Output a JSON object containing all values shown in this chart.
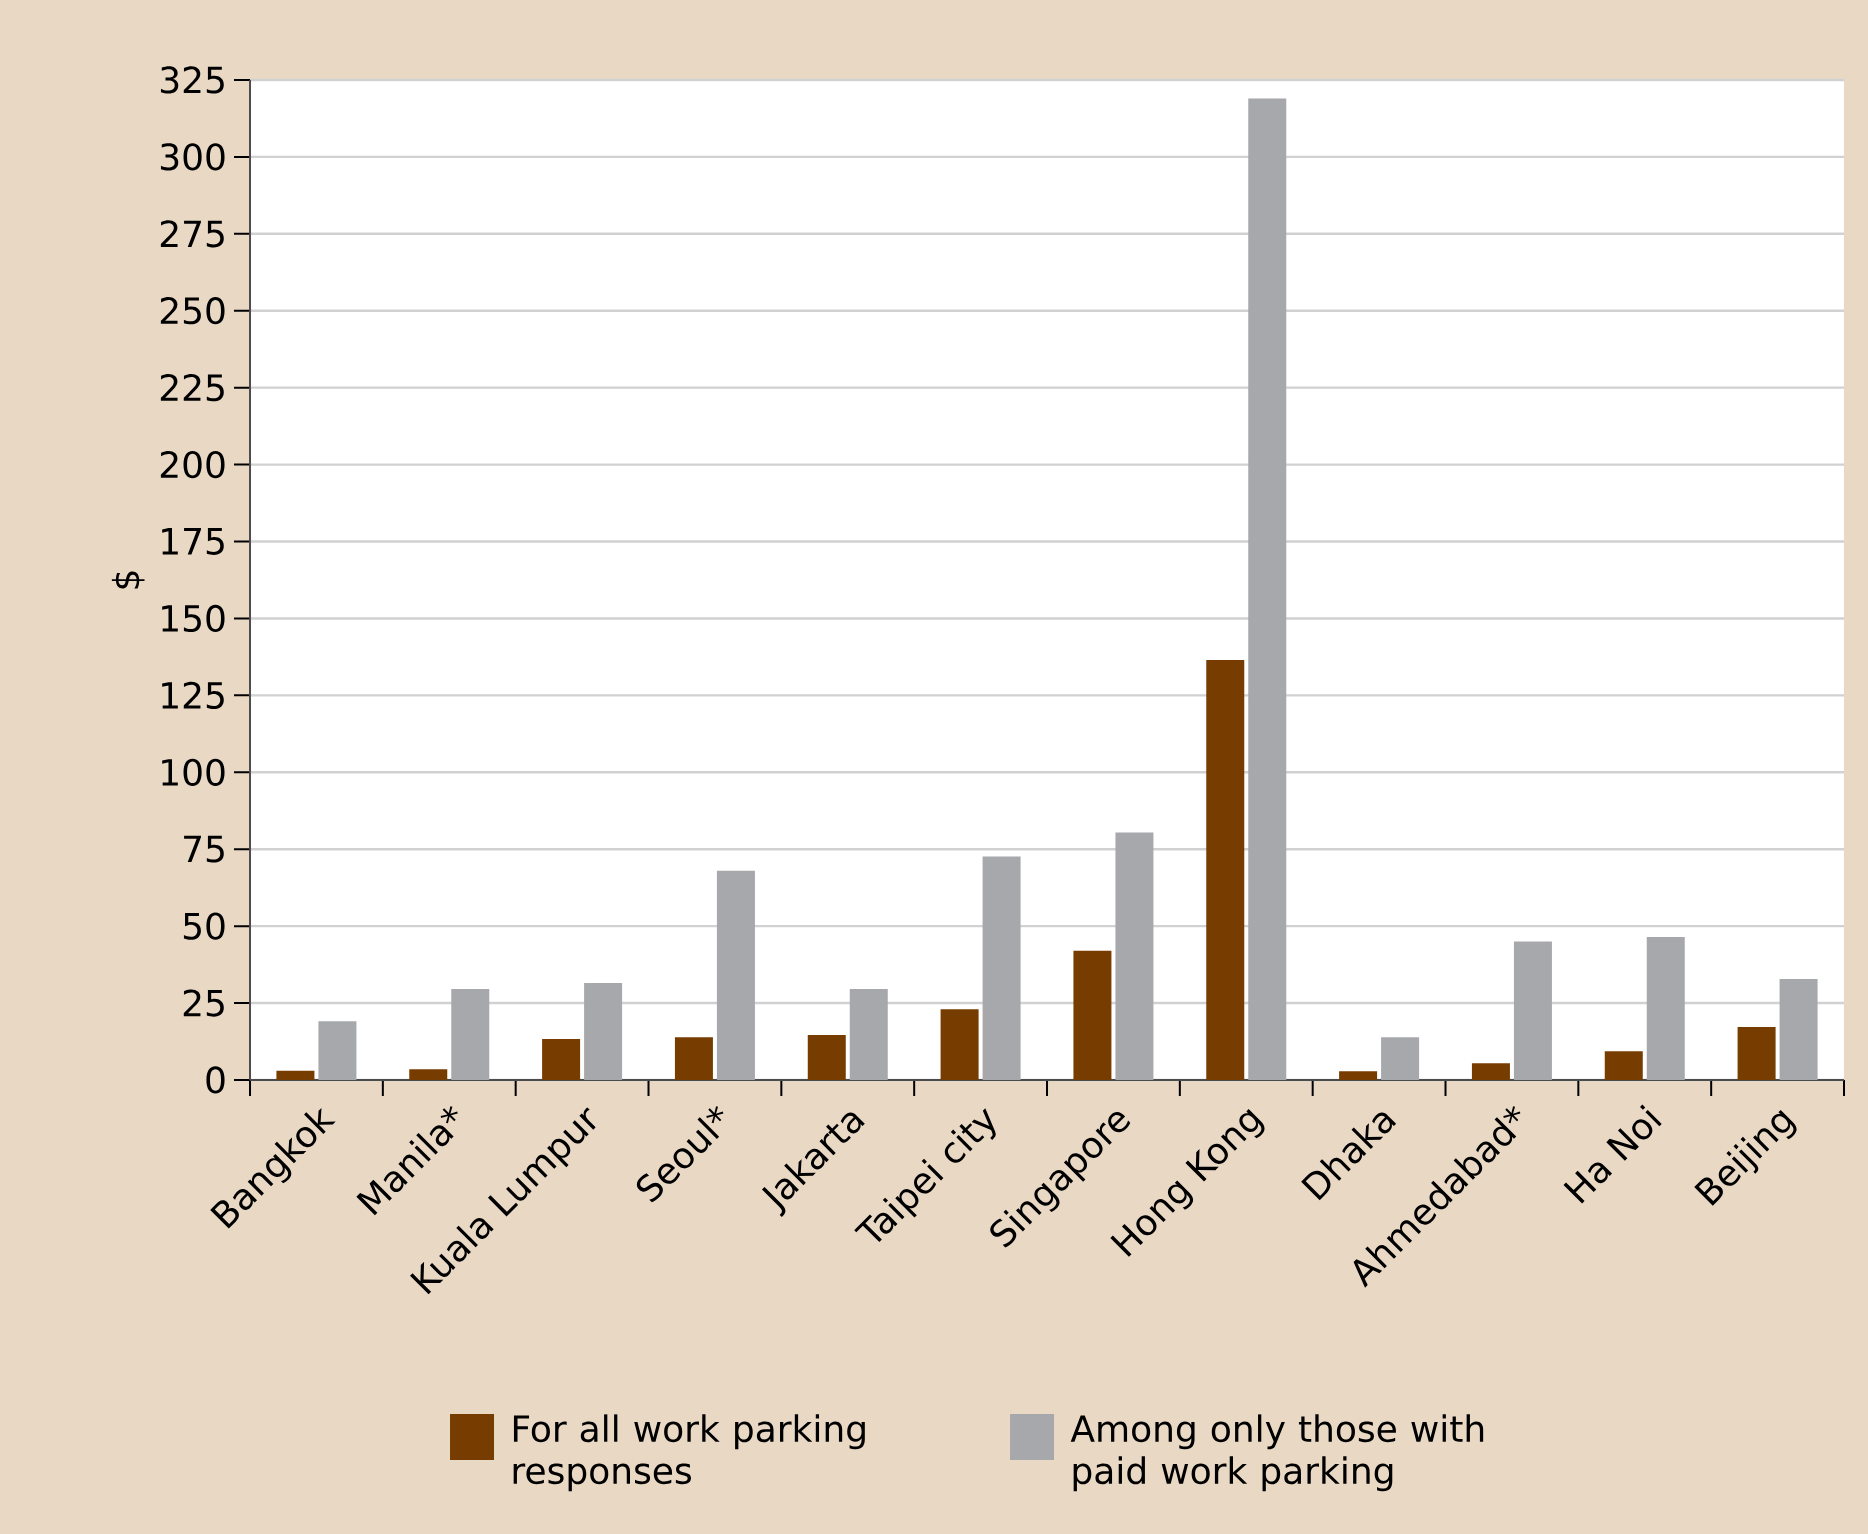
{
  "chart_data": {
    "type": "bar",
    "ylabel": "$",
    "categories": [
      "Bangkok",
      "Manila*",
      "Kuala Lumpur",
      "Seoul*",
      "Jakarta",
      "Taipei city",
      "Singapore",
      "Hong Kong",
      "Dhaka",
      "Ahmedabad*",
      "Ha Noi",
      "Beijing"
    ],
    "series": [
      {
        "name": "For all work parking responses",
        "color": "#773c00",
        "values": [
          3,
          3.5,
          13.3,
          13.9,
          14.6,
          23,
          42,
          136.5,
          2.8,
          5.4,
          9.3,
          17.2
        ]
      },
      {
        "name": "Among only those with paid work parking",
        "color": "#a7a8ab",
        "values": [
          19.1,
          29.6,
          31.5,
          68,
          29.6,
          72.6,
          80.4,
          319,
          13.9,
          45,
          46.5,
          32.8
        ]
      }
    ],
    "ylim": [
      0,
      325
    ],
    "yticks": [
      0,
      25,
      50,
      75,
      100,
      125,
      150,
      175,
      200,
      225,
      250,
      275,
      300,
      325
    ],
    "grid": "y",
    "legend": "bottom"
  }
}
